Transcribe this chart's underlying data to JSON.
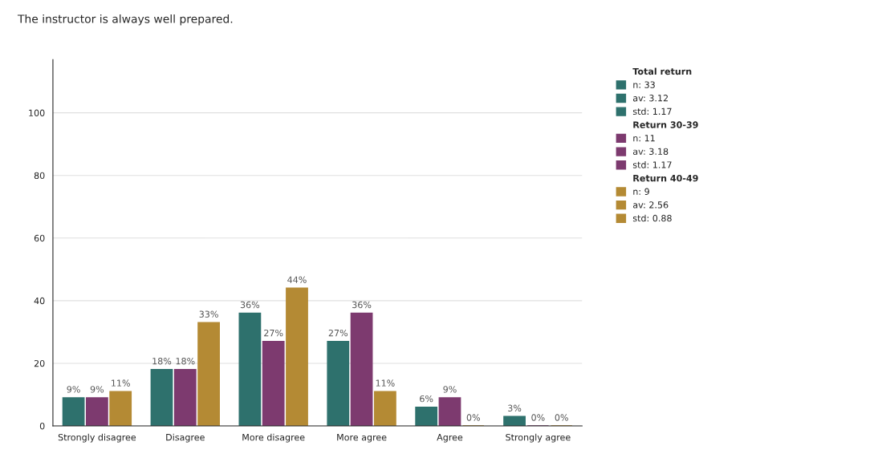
{
  "chart_data": {
    "type": "bar",
    "title": "The instructor is always well prepared.",
    "categories": [
      "Strongly disagree",
      "Disagree",
      "More disagree",
      "More agree",
      "Agree",
      "Strongly agree"
    ],
    "series": [
      {
        "name": "Total return",
        "color": "#2e716d",
        "values": [
          9,
          18,
          36,
          27,
          6,
          3
        ],
        "value_labels": [
          "9%",
          "18%",
          "36%",
          "27%",
          "6%",
          "3%"
        ]
      },
      {
        "name": "Return 30-39",
        "color": "#7d3a6f",
        "values": [
          9,
          18,
          27,
          36,
          9,
          0
        ],
        "value_labels": [
          "9%",
          "18%",
          "27%",
          "36%",
          "9%",
          "0%"
        ]
      },
      {
        "name": "Return 40-49",
        "color": "#b48a34",
        "values": [
          11,
          33,
          44,
          11,
          0,
          0
        ],
        "value_labels": [
          "11%",
          "33%",
          "44%",
          "11%",
          "0%",
          "0%"
        ]
      }
    ],
    "annotations": [
      "n: 33",
      "av: 3.12",
      "std: 1.17",
      "n: 11",
      "av: 3.18",
      "std: 1.17",
      "n: 9",
      "av: 2.56",
      "std: 0.88"
    ],
    "ylim": [
      0,
      117
    ],
    "yticks": [
      0,
      20,
      40,
      60,
      80,
      100
    ],
    "grid": "y",
    "legend": "right"
  }
}
